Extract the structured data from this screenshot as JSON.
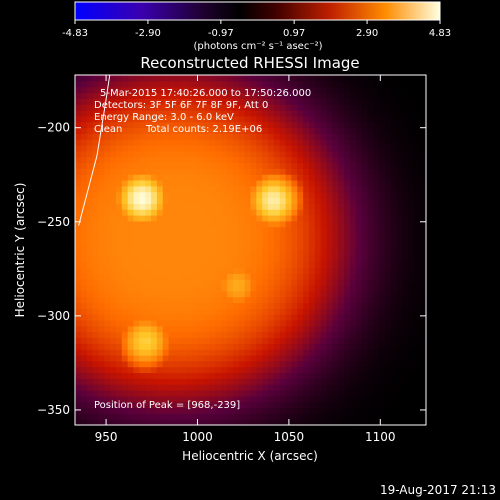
{
  "colorbar": {
    "ticks": [
      "-4.83",
      "-2.90",
      "-0.97",
      "0.97",
      "2.90",
      "4.83"
    ],
    "units": "(photons cm⁻² s⁻¹ asec⁻²)",
    "range": [
      -4.83,
      4.83
    ]
  },
  "chart_data": {
    "type": "heatmap",
    "title": "Reconstructed RHESSI Image",
    "xlabel": "Heliocentric X (arcsec)",
    "ylabel": "Heliocentric Y (arcsec)",
    "xlim": [
      933,
      1125
    ],
    "ylim": [
      -358,
      -172
    ],
    "x_ticks": [
      950,
      1000,
      1050,
      1100
    ],
    "y_ticks": [
      -350,
      -300,
      -250,
      -200
    ],
    "x_tick_labels": [
      "950",
      "1000",
      "1050",
      "1100"
    ],
    "y_tick_labels": [
      "−350",
      "−300",
      "−250",
      "−200"
    ],
    "annotations": [
      "5-Mar-2015 17:40:26.000 to 17:50:26.000",
      "Detectors: 3F 5F 6F 7F 8F 9F, Att 0",
      "Energy Range: 3.0 - 6.0 keV",
      "Clean",
      "Total counts: 2.19E+06"
    ],
    "peak_label": "Position of Peak = [968,-239]",
    "peak": [
      968,
      -239
    ],
    "sources": [
      {
        "x": 968,
        "y": -239,
        "level": 4.8
      },
      {
        "x": 1040,
        "y": -240,
        "level": 4.6
      },
      {
        "x": 1005,
        "y": -228,
        "level": 2.6
      },
      {
        "x": 990,
        "y": -268,
        "level": 2.9
      },
      {
        "x": 970,
        "y": -315,
        "level": 4.2
      },
      {
        "x": 1020,
        "y": -285,
        "level": 3.8
      }
    ],
    "limb_curve": [
      [
        935,
        -252
      ],
      [
        945,
        -215
      ],
      [
        950,
        -185
      ],
      [
        952,
        -172
      ]
    ]
  },
  "timestamp": "19-Aug-2017 21:13"
}
